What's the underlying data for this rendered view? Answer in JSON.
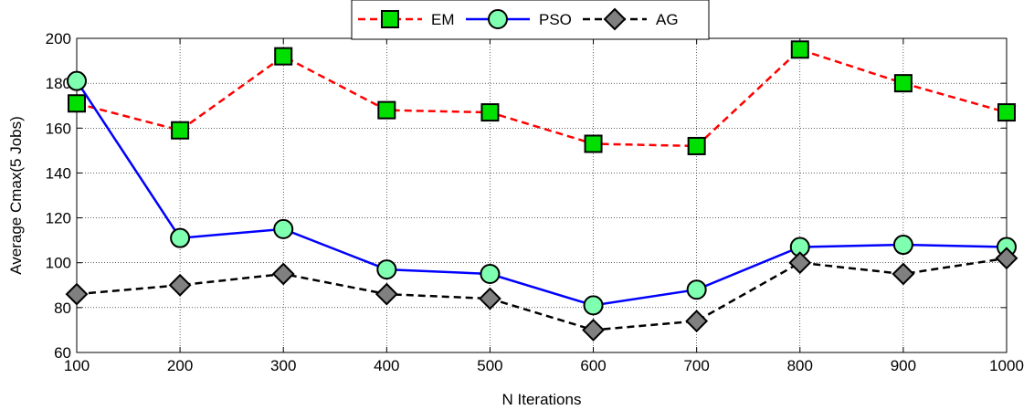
{
  "chart_data": {
    "type": "line",
    "xlabel": "N Iterations",
    "ylabel": "Average Cmax(5 Jobs)",
    "x": [
      100,
      200,
      300,
      400,
      500,
      600,
      700,
      800,
      900,
      1000
    ],
    "xlim": [
      100,
      1000
    ],
    "ylim": [
      60,
      200
    ],
    "xticks": [
      100,
      200,
      300,
      400,
      500,
      600,
      700,
      800,
      900,
      1000
    ],
    "yticks": [
      60,
      80,
      100,
      120,
      140,
      160,
      180,
      200
    ],
    "grid": true,
    "legend_placement": "top-center",
    "series": [
      {
        "name": "EM",
        "values": [
          171,
          159,
          192,
          168,
          167,
          153,
          152,
          195,
          180,
          167
        ],
        "line_color": "#ff0000",
        "line_style": "dashed",
        "marker": "square",
        "marker_fill": "#00e000"
      },
      {
        "name": "PSO",
        "values": [
          181,
          111,
          115,
          97,
          95,
          81,
          88,
          107,
          108,
          107
        ],
        "line_color": "#0000ff",
        "line_style": "solid",
        "marker": "circle",
        "marker_fill": "#7fffb0"
      },
      {
        "name": "AG",
        "values": [
          86,
          90,
          95,
          86,
          84,
          70,
          74,
          100,
          95,
          102
        ],
        "line_color": "#000000",
        "line_style": "dashed",
        "marker": "diamond",
        "marker_fill": "#808080"
      }
    ]
  }
}
